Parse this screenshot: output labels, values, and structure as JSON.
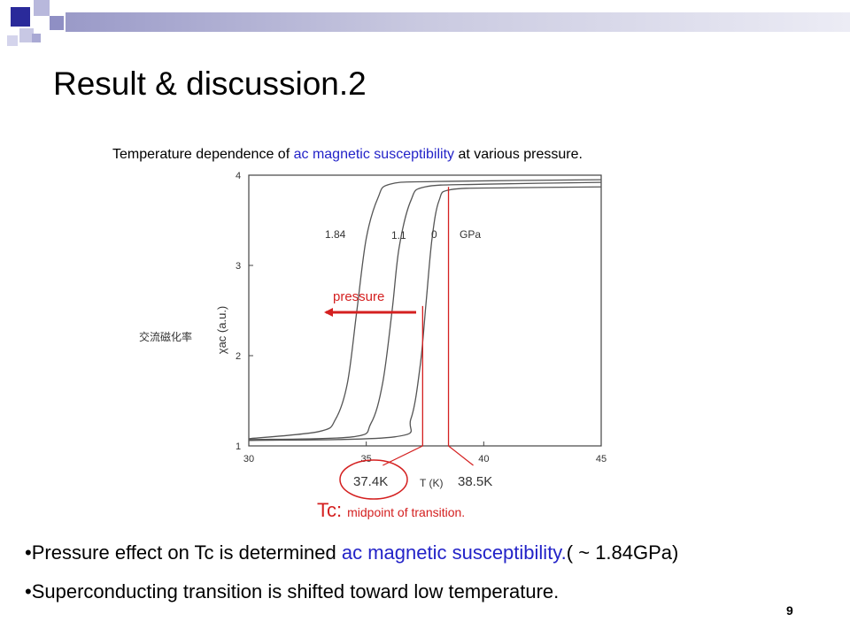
{
  "slide": {
    "title": "Result & discussion.2",
    "caption": {
      "before": "Temperature dependence of ",
      "highlight": "ac magnetic susceptibility",
      "after": " at various pressure."
    },
    "tc_note": {
      "label": "Tc:",
      "desc": "midpoint of transition."
    },
    "bullets": [
      {
        "bullet": "•",
        "before": "Pressure effect on Tc is determined ",
        "highlight": "ac magnetic susceptibility.",
        "after": "( ~ 1.84GPa)"
      },
      {
        "bullet": "•",
        "before": "Superconducting transition is shifted toward low temperature.",
        "highlight": "",
        "after": ""
      }
    ],
    "page_number": "9",
    "colors": {
      "highlight": "#2323c8",
      "annotation": "#d42020",
      "curve": "#555555",
      "header_bar": "#9a9ac8"
    }
  },
  "chart_data": {
    "type": "line",
    "xlabel": "T (K)",
    "ylabel": "χac (a.u.)",
    "ylabel_annotation": "交流磁化率",
    "xlim": [
      30,
      45
    ],
    "ylim": [
      1,
      4
    ],
    "xticks": [
      30,
      35,
      40,
      45
    ],
    "yticks": [
      1,
      2,
      3,
      4
    ],
    "grid": false,
    "unit_label": "GPa",
    "series": [
      {
        "name": "1.84",
        "x": [
          30,
          33,
          33.7,
          34.2,
          34.6,
          35.0,
          35.5,
          36,
          38,
          45
        ],
        "y": [
          1.08,
          1.16,
          1.3,
          1.7,
          2.5,
          3.3,
          3.75,
          3.9,
          3.93,
          3.95
        ]
      },
      {
        "name": "1.1",
        "x": [
          30,
          34.4,
          35.2,
          35.7,
          36.1,
          36.4,
          36.9,
          37.5,
          40,
          45
        ],
        "y": [
          1.07,
          1.1,
          1.25,
          1.7,
          2.5,
          3.2,
          3.72,
          3.87,
          3.9,
          3.92
        ]
      },
      {
        "name": "0",
        "x": [
          30,
          36.2,
          36.9,
          37.3,
          37.55,
          37.8,
          38.1,
          38.6,
          41,
          45
        ],
        "y": [
          1.06,
          1.1,
          1.3,
          1.9,
          2.6,
          3.3,
          3.72,
          3.84,
          3.86,
          3.87
        ]
      }
    ],
    "annotations": {
      "arrow_label": "pressure",
      "tc_values": [
        {
          "label": "37.4K",
          "x": 37.4
        },
        {
          "label": "38.5K",
          "x": 38.5
        }
      ]
    }
  }
}
